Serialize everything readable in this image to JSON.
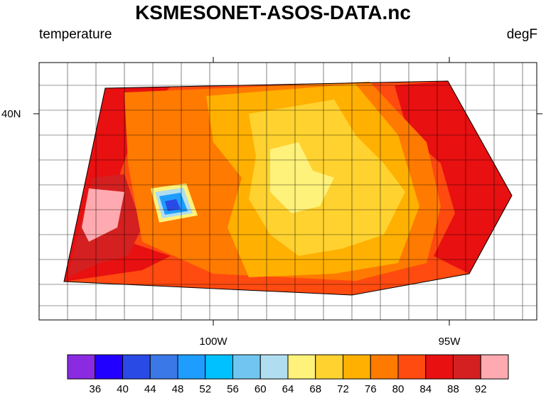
{
  "title": "KSMESONET-ASOS-DATA.nc",
  "left_label": "temperature",
  "right_label": "degF",
  "lat_labels": [
    {
      "text": "40N"
    }
  ],
  "lon_labels": [
    {
      "text": "100W"
    },
    {
      "text": "95W"
    }
  ],
  "colorbar": {
    "labels": [
      "36",
      "40",
      "44",
      "48",
      "52",
      "56",
      "60",
      "64",
      "68",
      "72",
      "76",
      "80",
      "84",
      "88",
      "92"
    ],
    "colors": [
      "#8a2be2",
      "#2200ff",
      "#2a4ae6",
      "#3a78e8",
      "#1e9dff",
      "#00c1ff",
      "#70c6f0",
      "#b0def0",
      "#fff27a",
      "#ffd230",
      "#ffb000",
      "#ff7a00",
      "#ff4a10",
      "#e81010",
      "#d42020",
      "#ffaab0"
    ]
  },
  "map_colors": {
    "c84": "#ff4a10",
    "c80": "#ff7a00",
    "c76": "#ffb000",
    "c72": "#ffd230",
    "c88": "#e81010",
    "c92": "#d42020",
    "c96": "#ffaab0",
    "cold1": "#fff27a",
    "cold2": "#b0def0",
    "cold3": "#1e9dff",
    "cold4": "#2a4ae6"
  }
}
